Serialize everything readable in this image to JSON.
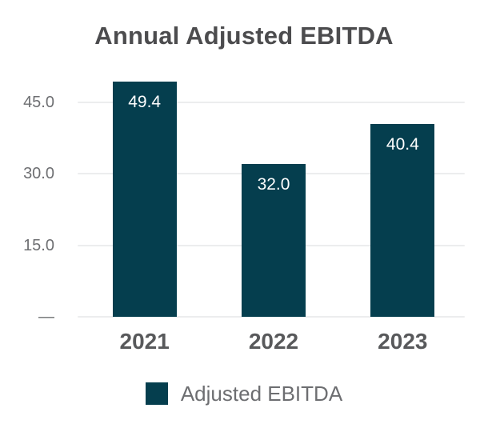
{
  "chart_data": {
    "type": "bar",
    "title": "Annual Adjusted EBITDA",
    "categories": [
      "2021",
      "2022",
      "2023"
    ],
    "series": [
      {
        "name": "Adjusted EBITDA",
        "values": [
          49.4,
          32.0,
          40.4
        ]
      }
    ],
    "data_labels": [
      "49.4",
      "32.0",
      "40.4"
    ],
    "yticks": [
      {
        "value": 0,
        "label": "—"
      },
      {
        "value": 15,
        "label": "15.0"
      },
      {
        "value": 30,
        "label": "30.0"
      },
      {
        "value": 45,
        "label": "45.0"
      }
    ],
    "ylim": [
      0,
      50.5
    ],
    "grid": true,
    "xlabel": "",
    "ylabel": "",
    "legend": [
      "Adjusted EBITDA"
    ],
    "legend_position": "bottom",
    "colors": {
      "bar": "#053E4E",
      "gridline": "#ECEDEE",
      "title_text": "#4C4C4E",
      "tick_text": "#6E6F72",
      "xlabel_text": "#58595B",
      "bar_label_text": "#FFFFFF",
      "legend_text": "#6D6E71"
    }
  }
}
